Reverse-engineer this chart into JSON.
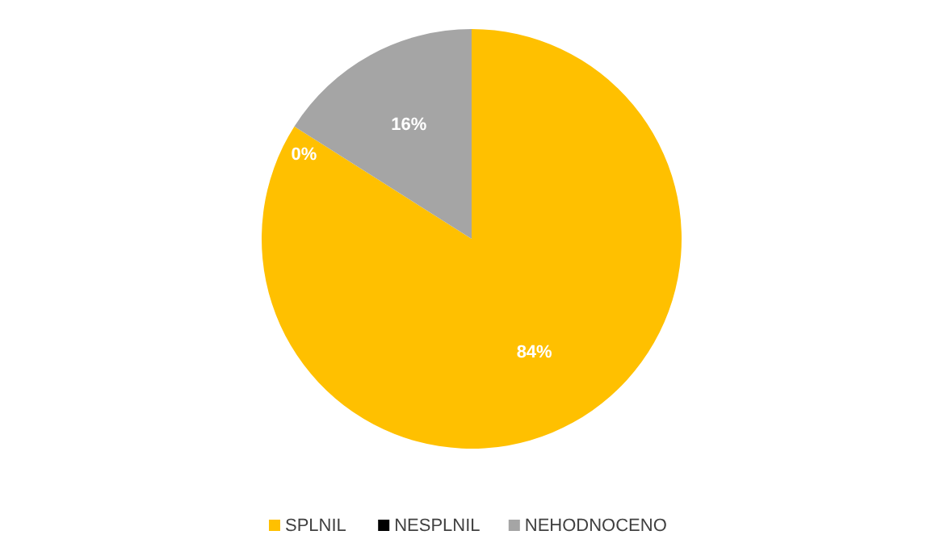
{
  "chart_data": {
    "type": "pie",
    "categories": [
      "SPLNIL",
      "NESPLNIL",
      "NEHODNOCENO"
    ],
    "values": [
      84,
      0,
      16
    ],
    "colors": [
      "#ffc000",
      "#000000",
      "#a5a5a5"
    ],
    "value_labels": [
      "84%",
      "0%",
      "16%"
    ],
    "legend": "bottom"
  }
}
